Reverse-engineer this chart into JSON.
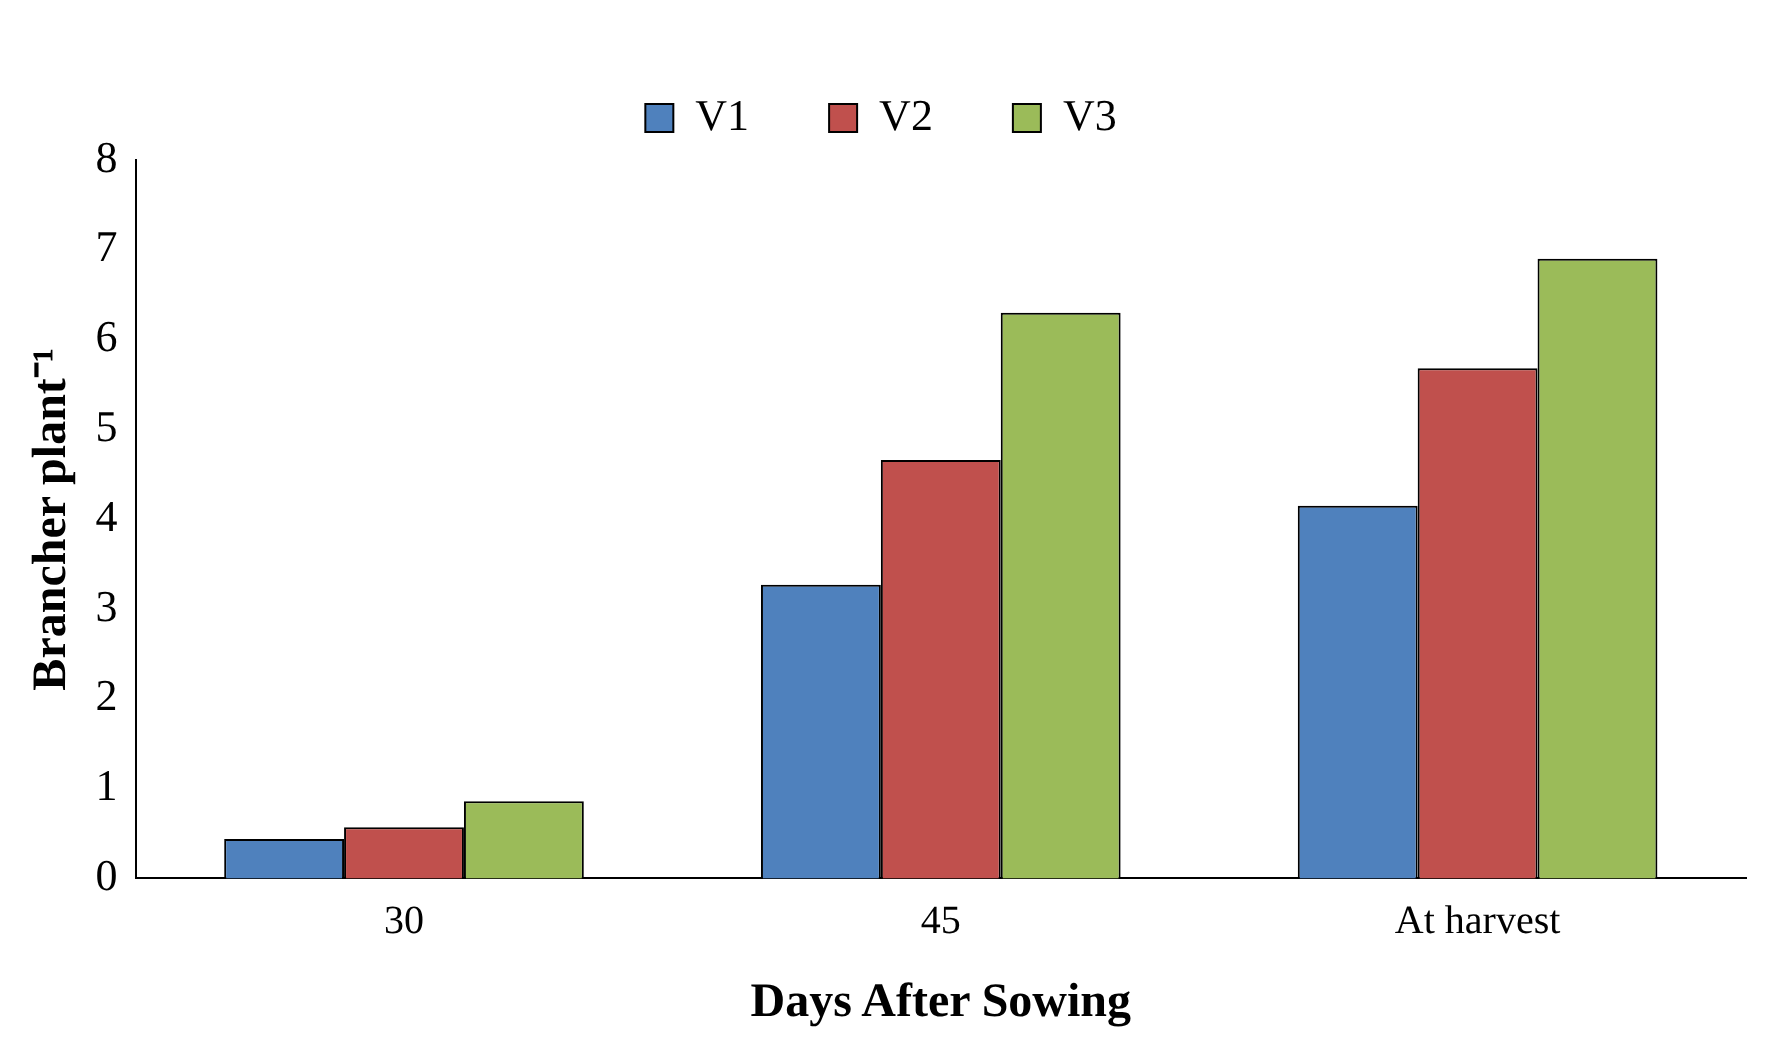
{
  "chart_data": {
    "type": "bar",
    "xlabel": "Days After Sowing",
    "ylabel": "Brancher plant⁻¹",
    "categories": [
      "30",
      "45",
      "At harvest"
    ],
    "series": [
      {
        "name": "V1",
        "color": "#4f81bd",
        "values": [
          0.44,
          3.27,
          4.15
        ]
      },
      {
        "name": "V2",
        "color": "#c0504d",
        "values": [
          0.57,
          4.66,
          5.68
        ]
      },
      {
        "name": "V3",
        "color": "#9bbb59",
        "values": [
          0.86,
          6.3,
          6.9
        ]
      }
    ],
    "ylim": [
      0,
      8
    ],
    "yticks": [
      0,
      1,
      2,
      3,
      4,
      5,
      6,
      7,
      8
    ],
    "grid": false,
    "legend": "top"
  }
}
